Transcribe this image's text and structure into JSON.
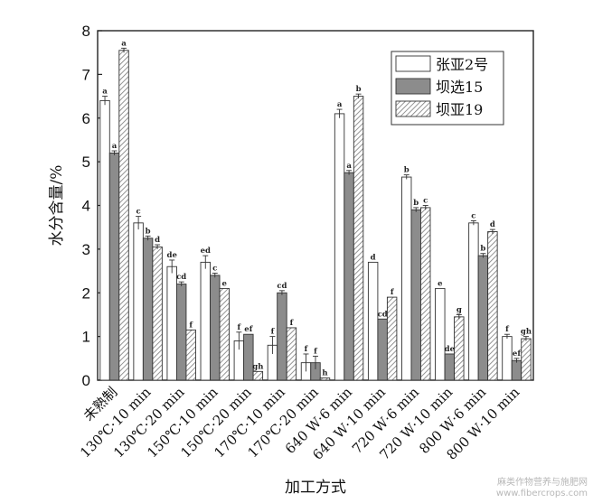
{
  "chart_data": {
    "type": "bar",
    "ylabel": "水分含量/%",
    "xlabel": "加工方式",
    "ylim": [
      0,
      8
    ],
    "yticks": [
      0,
      1,
      2,
      3,
      4,
      5,
      6,
      7,
      8
    ],
    "grid": false,
    "legend_position": "top-right",
    "categories": [
      "未熟制",
      "130℃·10 min",
      "130℃·20 min",
      "150℃·10 min",
      "150℃·20 min",
      "170℃·10 min",
      "170℃·20 min",
      "640 W·6 min",
      "640 W·10 min",
      "720 W·6 min",
      "720 W·10 min",
      "800 W·6 min",
      "800 W·10 min"
    ],
    "series": [
      {
        "name": "张亚2号",
        "fill": "white",
        "values": [
          6.4,
          3.6,
          2.6,
          2.7,
          0.9,
          0.8,
          0.4,
          6.1,
          2.7,
          4.65,
          2.1,
          3.6,
          1.0
        ],
        "errors": [
          0.1,
          0.15,
          0.15,
          0.15,
          0.2,
          0.2,
          0.2,
          0.1,
          0.0,
          0.05,
          0.0,
          0.05,
          0.05
        ],
        "labels": [
          "a",
          "c",
          "de",
          "ed",
          "f",
          "f",
          "f",
          "a",
          "d",
          "b",
          "e",
          "c",
          "f"
        ]
      },
      {
        "name": "坝选15",
        "fill": "gray",
        "values": [
          5.2,
          3.25,
          2.2,
          2.4,
          1.05,
          2.0,
          0.4,
          4.75,
          1.4,
          3.9,
          0.6,
          2.85,
          0.45
        ],
        "errors": [
          0.05,
          0.05,
          0.05,
          0.05,
          0.0,
          0.05,
          0.15,
          0.05,
          0.0,
          0.05,
          0.0,
          0.05,
          0.05
        ],
        "labels": [
          "a",
          "b",
          "cd",
          "c",
          "ef",
          "cd",
          "f",
          "a",
          "cd",
          "b",
          "de",
          "b",
          "ef"
        ]
      },
      {
        "name": "坝亚19",
        "fill": "hatch",
        "values": [
          7.55,
          3.05,
          1.15,
          2.1,
          0.2,
          1.2,
          0.05,
          6.5,
          1.9,
          3.95,
          1.45,
          3.4,
          0.95
        ],
        "errors": [
          0.05,
          0.05,
          0.0,
          0.0,
          0.0,
          0.0,
          0.0,
          0.05,
          0.0,
          0.05,
          0.05,
          0.05,
          0.05
        ],
        "labels": [
          "a",
          "d",
          "f",
          "e",
          "gh",
          "f",
          "h",
          "b",
          "f",
          "c",
          "g",
          "d",
          "gh"
        ]
      }
    ]
  },
  "watermark": {
    "line1": "麻类作物营养与施肥网",
    "line2": "www.fibercrops.com"
  }
}
